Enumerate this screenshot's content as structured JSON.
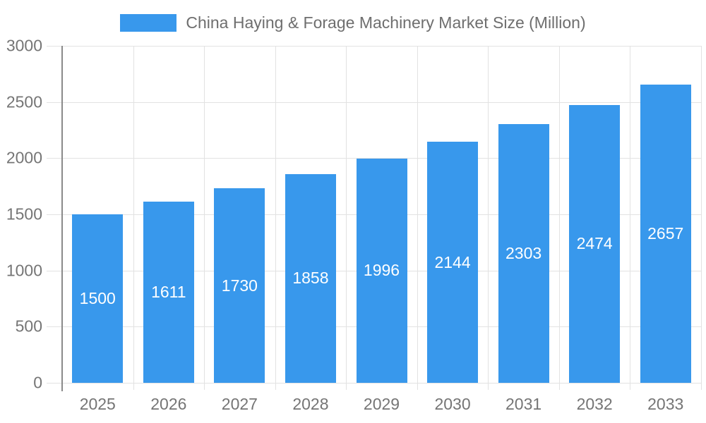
{
  "chart_data": {
    "type": "bar",
    "title": "China Haying & Forage Machinery Market Size (Million)",
    "categories": [
      "2025",
      "2026",
      "2027",
      "2028",
      "2029",
      "2030",
      "2031",
      "2032",
      "2033"
    ],
    "values": [
      1500,
      1611,
      1730,
      1858,
      1996,
      2144,
      2303,
      2474,
      2657
    ],
    "xlabel": "",
    "ylabel": "",
    "ylim": [
      0,
      3000
    ],
    "y_ticks": [
      0,
      500,
      1000,
      1500,
      2000,
      2500,
      3000
    ],
    "grid": true,
    "legend_position": "top",
    "bar_value_labels": "inside-center-white",
    "colors": {
      "bar": "#3898EC",
      "grid_line": "#E2E2E2",
      "axis_line": "#8A8A8A",
      "tick_text": "#757575",
      "title_text": "#6E6E6E",
      "bar_label_text": "#FFFFFF"
    }
  }
}
